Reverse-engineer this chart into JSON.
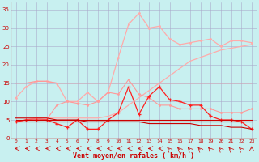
{
  "x": [
    0,
    1,
    2,
    3,
    4,
    5,
    6,
    7,
    8,
    9,
    10,
    11,
    12,
    13,
    14,
    15,
    16,
    17,
    18,
    19,
    20,
    21,
    22,
    23
  ],
  "line_pink_top": [
    11,
    14,
    15.5,
    15.5,
    15,
    10,
    10,
    12.5,
    10,
    12.5,
    22,
    31,
    34,
    30,
    30.5,
    27,
    25.5,
    26,
    26.5,
    27,
    25,
    26.5,
    26.5,
    26
  ],
  "line_pink_mid": [
    4.5,
    5,
    5.5,
    5.5,
    5.5,
    5.5,
    5.5,
    5.5,
    5.5,
    6,
    7,
    9,
    11,
    13,
    15,
    17,
    19,
    21,
    22,
    23,
    24,
    24.5,
    25,
    25.5
  ],
  "line_pink_flat": [
    15,
    15,
    15.5,
    15.5,
    15,
    15,
    15,
    15,
    15,
    15,
    15,
    15,
    15,
    15,
    15,
    15,
    15,
    15,
    15,
    15,
    15,
    15,
    15,
    15
  ],
  "line_pink_lower": [
    4.5,
    5,
    5.5,
    5,
    9,
    10,
    9.5,
    9,
    10,
    12.5,
    12,
    16,
    12,
    11,
    9,
    9,
    8,
    8,
    8,
    8,
    7,
    7,
    7,
    8
  ],
  "line_red_jagged": [
    4.5,
    5,
    5,
    5,
    4,
    3,
    5,
    2.5,
    2.5,
    5,
    7,
    14,
    6.5,
    11.5,
    14,
    10.5,
    10,
    9,
    9,
    6,
    5,
    5,
    4.5,
    2.5
  ],
  "line_red_flat1": [
    5,
    5,
    5,
    5,
    5,
    5,
    5,
    5,
    5,
    5,
    5,
    5,
    5,
    5,
    5,
    5,
    5,
    5,
    5,
    5,
    5,
    5,
    5,
    5
  ],
  "line_dark_flat": [
    4.5,
    4.5,
    4.5,
    4.5,
    4.5,
    4.5,
    4.5,
    4.5,
    4.5,
    4.5,
    4.5,
    4.5,
    4.5,
    4.5,
    4.5,
    4.5,
    4.5,
    4.5,
    4.5,
    4.5,
    4.5,
    4.5,
    4.5,
    4.5
  ],
  "line_red_decline": [
    5.5,
    5.5,
    5.5,
    5.5,
    5,
    5,
    5,
    4.5,
    4.5,
    4.5,
    4.5,
    4.5,
    4.5,
    4,
    4,
    4,
    4,
    4,
    3.5,
    3.5,
    3.5,
    3,
    3,
    2.5
  ],
  "bg_color": "#c8f0f0",
  "grid_color": "#aaaacc",
  "xlabel": "Vent moyen/en rafales ( km/h )",
  "ylim": [
    0,
    37
  ],
  "yticks": [
    0,
    5,
    10,
    15,
    20,
    25,
    30,
    35
  ],
  "tick_color": "#cc0000",
  "label_color": "#cc0000"
}
